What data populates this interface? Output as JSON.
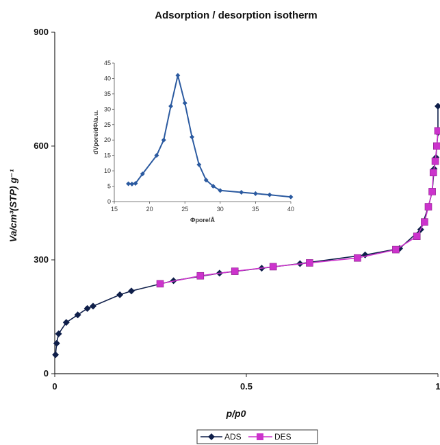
{
  "chart_data": {
    "type": "line",
    "title": "Adsorption / desorption isotherm",
    "xlabel": "p/p0",
    "ylabel": "Va/cm³(STP) g⁻¹",
    "xlim": [
      0,
      1
    ],
    "ylim": [
      0,
      900
    ],
    "x_ticks": [
      "0",
      "0.5",
      "1"
    ],
    "y_ticks": [
      "0",
      "300",
      "600",
      "900"
    ],
    "legend_position": "bottom",
    "series": [
      {
        "name": "ADS",
        "color": "#0f1f4a",
        "marker": "diamond",
        "points": [
          [
            0.002,
            50
          ],
          [
            0.005,
            80
          ],
          [
            0.01,
            105
          ],
          [
            0.03,
            135
          ],
          [
            0.06,
            155
          ],
          [
            0.085,
            172
          ],
          [
            0.1,
            178
          ],
          [
            0.17,
            208
          ],
          [
            0.2,
            218
          ],
          [
            0.31,
            245
          ],
          [
            0.43,
            265
          ],
          [
            0.54,
            278
          ],
          [
            0.64,
            290
          ],
          [
            0.81,
            313
          ],
          [
            0.9,
            330
          ],
          [
            0.955,
            380
          ],
          [
            0.975,
            440
          ],
          [
            0.985,
            480
          ],
          [
            0.99,
            540
          ],
          [
            0.995,
            570
          ],
          [
            0.997,
            600
          ],
          [
            1.0,
            635
          ],
          [
            1.0,
            705
          ]
        ]
      },
      {
        "name": "DES",
        "color": "#cc33cc",
        "marker": "square",
        "points": [
          [
            1.0,
            640
          ],
          [
            0.997,
            600
          ],
          [
            0.993,
            560
          ],
          [
            0.988,
            530
          ],
          [
            0.985,
            480
          ],
          [
            0.975,
            440
          ],
          [
            0.965,
            400
          ],
          [
            0.945,
            362
          ],
          [
            0.89,
            327
          ],
          [
            0.79,
            305
          ],
          [
            0.665,
            292
          ],
          [
            0.57,
            282
          ],
          [
            0.47,
            270
          ],
          [
            0.38,
            258
          ],
          [
            0.275,
            237
          ]
        ]
      }
    ],
    "inset": {
      "xlabel": "Φpore/Å",
      "ylabel": "dVpore/dΦ/a.u.",
      "xlim": [
        15,
        40
      ],
      "ylim": [
        0,
        45
      ],
      "x_ticks": [
        "15",
        "20",
        "25",
        "30",
        "35",
        "40"
      ],
      "y_ticks": [
        "0",
        "5",
        "10",
        "15",
        "20",
        "25",
        "30",
        "35",
        "40",
        "45"
      ],
      "series": {
        "color": "#2b5aa0",
        "points": [
          [
            17,
            5.8
          ],
          [
            17.5,
            5.7
          ],
          [
            18,
            5.9
          ],
          [
            19,
            9
          ],
          [
            21,
            15
          ],
          [
            22,
            20
          ],
          [
            23,
            31
          ],
          [
            24,
            41
          ],
          [
            25,
            32
          ],
          [
            26,
            21
          ],
          [
            27,
            12
          ],
          [
            28,
            7
          ],
          [
            29,
            5
          ],
          [
            30,
            3.6
          ],
          [
            33,
            3
          ],
          [
            35,
            2.6
          ],
          [
            37,
            2.2
          ],
          [
            40,
            1.5
          ]
        ]
      }
    }
  }
}
